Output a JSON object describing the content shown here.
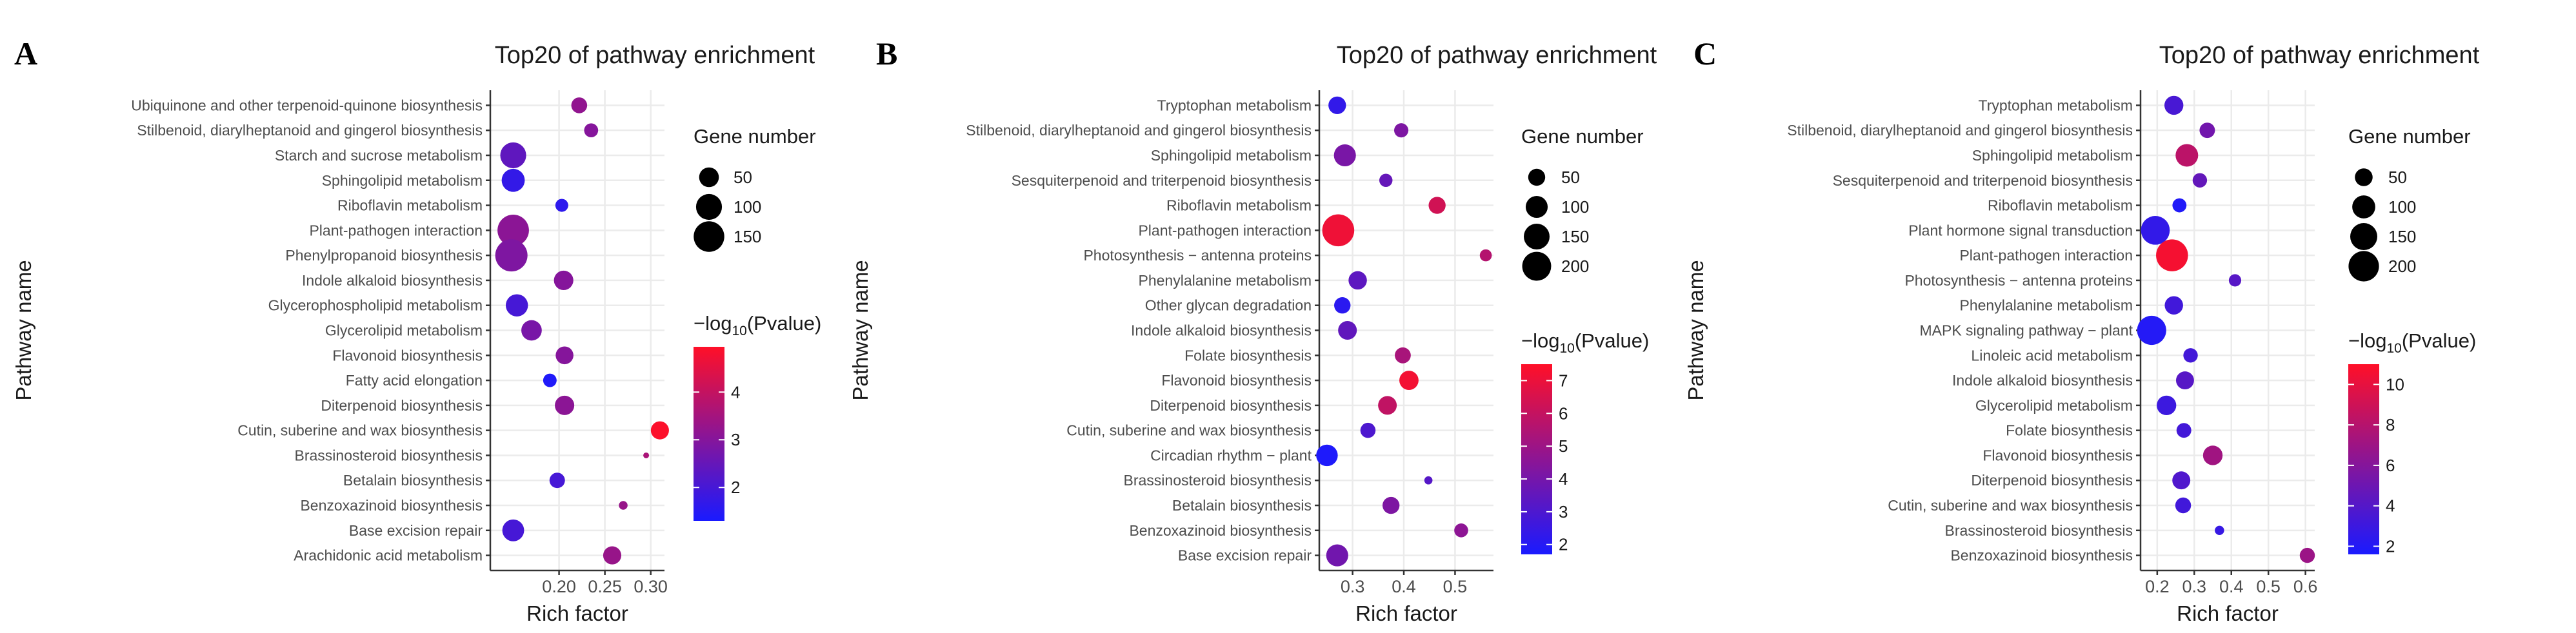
{
  "chart_data": [
    {
      "panel": "A",
      "type": "scatter",
      "title": "Top20 of pathway enrichment",
      "xlabel": "Rich factor",
      "ylabel": "Pathway name",
      "xlim": [
        0.125,
        0.315
      ],
      "xticks": [
        0.2,
        0.25,
        0.3
      ],
      "xtick_labels": [
        "0.20",
        "0.25",
        "0.30"
      ],
      "size_legend_title": "Gene number",
      "size_legend_values": [
        50,
        100,
        150
      ],
      "size_domain": [
        4,
        170
      ],
      "color_legend_title_prefix": "−log",
      "color_legend_title_sub": "10",
      "color_legend_title_suffix": "(Pvalue)",
      "color_range": [
        1.3,
        4.95
      ],
      "color_ticks": [
        2,
        3,
        4
      ],
      "categories": [
        "Ubiquinone and other terpenoid-quinone biosynthesis",
        "Stilbenoid, diarylheptanoid and gingerol biosynthesis",
        "Starch and sucrose metabolism",
        "Sphingolipid metabolism",
        "Riboflavin metabolism",
        "Plant-pathogen interaction",
        "Phenylpropanoid biosynthesis",
        "Indole alkaloid biosynthesis",
        "Glycerophospholipid metabolism",
        "Glycerolipid metabolism",
        "Flavonoid biosynthesis",
        "Fatty acid elongation",
        "Diterpenoid biosynthesis",
        "Cutin, suberine and wax biosynthesis",
        "Brassinosteroid biosynthesis",
        "Betalain biosynthesis",
        "Benzoxazinoid biosynthesis",
        "Base excision repair",
        "Arachidonic acid metabolism"
      ],
      "points": [
        {
          "x": 0.222,
          "genes": 28,
          "logp": 3.2
        },
        {
          "x": 0.235,
          "genes": 20,
          "logp": 3.0
        },
        {
          "x": 0.15,
          "genes": 100,
          "logp": 2.4
        },
        {
          "x": 0.15,
          "genes": 75,
          "logp": 1.7
        },
        {
          "x": 0.203,
          "genes": 16,
          "logp": 1.6
        },
        {
          "x": 0.15,
          "genes": 160,
          "logp": 3.1
        },
        {
          "x": 0.148,
          "genes": 170,
          "logp": 2.9
        },
        {
          "x": 0.205,
          "genes": 48,
          "logp": 3.0
        },
        {
          "x": 0.154,
          "genes": 68,
          "logp": 2.0
        },
        {
          "x": 0.17,
          "genes": 55,
          "logp": 2.8
        },
        {
          "x": 0.206,
          "genes": 38,
          "logp": 3.0
        },
        {
          "x": 0.19,
          "genes": 18,
          "logp": 1.4
        },
        {
          "x": 0.206,
          "genes": 48,
          "logp": 3.1
        },
        {
          "x": 0.31,
          "genes": 40,
          "logp": 4.9
        },
        {
          "x": 0.295,
          "genes": 4,
          "logp": 3.6
        },
        {
          "x": 0.198,
          "genes": 26,
          "logp": 2.0
        },
        {
          "x": 0.27,
          "genes": 6,
          "logp": 3.3
        },
        {
          "x": 0.15,
          "genes": 65,
          "logp": 2.0
        },
        {
          "x": 0.258,
          "genes": 40,
          "logp": 3.3
        }
      ]
    },
    {
      "panel": "B",
      "type": "scatter",
      "title": "Top20 of pathway enrichment",
      "xlabel": "Rich factor",
      "ylabel": "Pathway name",
      "xlim": [
        0.235,
        0.575
      ],
      "xticks": [
        0.3,
        0.4,
        0.5
      ],
      "xtick_labels": [
        "0.3",
        "0.4",
        "0.5"
      ],
      "size_legend_title": "Gene number",
      "size_legend_values": [
        50,
        100,
        150,
        200
      ],
      "size_domain": [
        4,
        260
      ],
      "color_legend_title_prefix": "−log",
      "color_legend_title_sub": "10",
      "color_legend_title_suffix": "(Pvalue)",
      "color_range": [
        1.7,
        7.5
      ],
      "color_ticks": [
        2,
        3,
        4,
        5,
        6,
        7
      ],
      "categories": [
        "Tryptophan metabolism",
        "Stilbenoid, diarylheptanoid and gingerol biosynthesis",
        "Sphingolipid metabolism",
        "Sesquiterpenoid and triterpenoid biosynthesis",
        "Riboflavin metabolism",
        "Plant-pathogen interaction",
        "Photosynthesis − antenna proteins",
        "Phenylalanine metabolism",
        "Other glycan degradation",
        "Indole alkaloid biosynthesis",
        "Folate biosynthesis",
        "Flavonoid biosynthesis",
        "Diterpenoid biosynthesis",
        "Cutin, suberine and wax biosynthesis",
        "Circadian rhythm − plant",
        "Brassinosteroid biosynthesis",
        "Betalain biosynthesis",
        "Benzoxazinoid biosynthesis",
        "Base excision repair"
      ],
      "points": [
        {
          "x": 0.27,
          "genes": 55,
          "logp": 2.3
        },
        {
          "x": 0.395,
          "genes": 30,
          "logp": 4.2
        },
        {
          "x": 0.285,
          "genes": 100,
          "logp": 4.1
        },
        {
          "x": 0.365,
          "genes": 24,
          "logp": 3.6
        },
        {
          "x": 0.465,
          "genes": 50,
          "logp": 6.3
        },
        {
          "x": 0.272,
          "genes": 255,
          "logp": 7.1
        },
        {
          "x": 0.56,
          "genes": 18,
          "logp": 5.6
        },
        {
          "x": 0.31,
          "genes": 62,
          "logp": 3.4
        },
        {
          "x": 0.28,
          "genes": 45,
          "logp": 2.1
        },
        {
          "x": 0.29,
          "genes": 65,
          "logp": 3.5
        },
        {
          "x": 0.398,
          "genes": 42,
          "logp": 5.3
        },
        {
          "x": 0.41,
          "genes": 70,
          "logp": 7.2
        },
        {
          "x": 0.368,
          "genes": 65,
          "logp": 5.9
        },
        {
          "x": 0.33,
          "genes": 36,
          "logp": 3.0
        },
        {
          "x": 0.25,
          "genes": 95,
          "logp": 1.8
        },
        {
          "x": 0.448,
          "genes": 6,
          "logp": 3.2
        },
        {
          "x": 0.375,
          "genes": 50,
          "logp": 4.2
        },
        {
          "x": 0.512,
          "genes": 28,
          "logp": 4.6
        },
        {
          "x": 0.27,
          "genes": 100,
          "logp": 3.9
        }
      ]
    },
    {
      "panel": "C",
      "type": "scatter",
      "title": "Top20 of pathway enrichment",
      "xlabel": "Rich factor",
      "ylabel": "Pathway name",
      "xlim": [
        0.155,
        0.625
      ],
      "xticks": [
        0.2,
        0.3,
        0.4,
        0.5,
        0.6
      ],
      "xtick_labels": [
        "0.2",
        "0.3",
        "0.4",
        "0.5",
        "0.6"
      ],
      "size_legend_title": "Gene number",
      "size_legend_values": [
        50,
        100,
        150,
        200
      ],
      "size_domain": [
        4,
        230
      ],
      "color_legend_title_prefix": "−log",
      "color_legend_title_sub": "10",
      "color_legend_title_suffix": "(Pvalue)",
      "color_range": [
        1.6,
        11.0
      ],
      "color_ticks": [
        2,
        4,
        6,
        8,
        10
      ],
      "categories": [
        "Tryptophan metabolism",
        "Stilbenoid, diarylheptanoid and gingerol biosynthesis",
        "Sphingolipid metabolism",
        "Sesquiterpenoid and triterpenoid biosynthesis",
        "Riboflavin metabolism",
        "Plant hormone signal transduction",
        "Plant-pathogen interaction",
        "Photosynthesis − antenna proteins",
        "Phenylalanine metabolism",
        "MAPK signaling pathway − plant",
        "Linoleic acid metabolism",
        "Indole alkaloid biosynthesis",
        "Glycerolipid metabolism",
        "Folate biosynthesis",
        "Flavonoid biosynthesis",
        "Diterpenoid biosynthesis",
        "Cutin, suberine and wax biosynthesis",
        "Brassinosteroid biosynthesis",
        "Benzoxazinoid biosynthesis"
      ],
      "points": [
        {
          "x": 0.245,
          "genes": 60,
          "logp": 3.5
        },
        {
          "x": 0.335,
          "genes": 34,
          "logp": 5.2
        },
        {
          "x": 0.28,
          "genes": 95,
          "logp": 8.2
        },
        {
          "x": 0.315,
          "genes": 28,
          "logp": 4.6
        },
        {
          "x": 0.26,
          "genes": 26,
          "logp": 1.9
        },
        {
          "x": 0.195,
          "genes": 175,
          "logp": 2.6
        },
        {
          "x": 0.24,
          "genes": 225,
          "logp": 10.6
        },
        {
          "x": 0.41,
          "genes": 18,
          "logp": 4.1
        },
        {
          "x": 0.245,
          "genes": 55,
          "logp": 3.2
        },
        {
          "x": 0.185,
          "genes": 180,
          "logp": 2.0
        },
        {
          "x": 0.29,
          "genes": 28,
          "logp": 3.3
        },
        {
          "x": 0.275,
          "genes": 52,
          "logp": 4.1
        },
        {
          "x": 0.225,
          "genes": 65,
          "logp": 3.0
        },
        {
          "x": 0.272,
          "genes": 30,
          "logp": 3.3
        },
        {
          "x": 0.35,
          "genes": 65,
          "logp": 7.1
        },
        {
          "x": 0.265,
          "genes": 52,
          "logp": 3.8
        },
        {
          "x": 0.27,
          "genes": 36,
          "logp": 3.2
        },
        {
          "x": 0.368,
          "genes": 8,
          "logp": 2.8
        },
        {
          "x": 0.605,
          "genes": 32,
          "logp": 6.9
        }
      ]
    }
  ]
}
